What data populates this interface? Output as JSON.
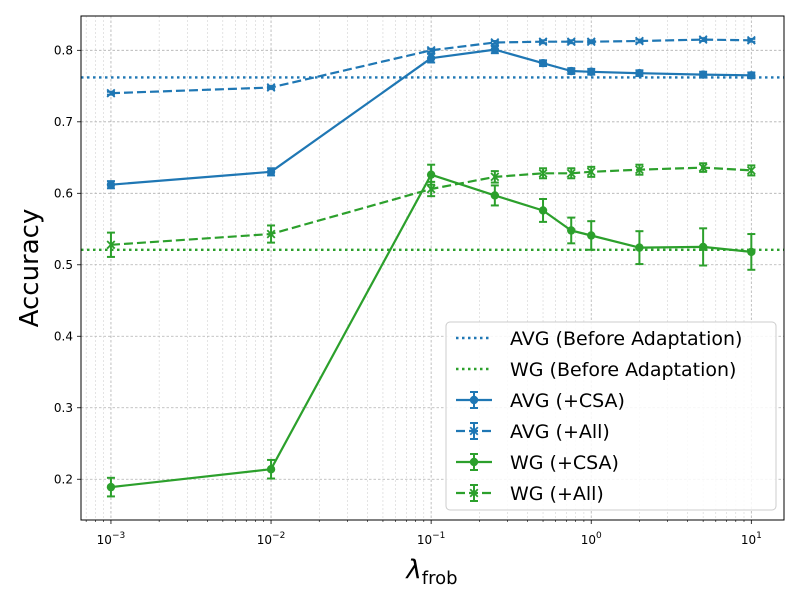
{
  "chart_data": {
    "type": "line",
    "xscale": "log",
    "xlim": [
      0.00065,
      16
    ],
    "ylim": [
      0.143,
      0.848
    ],
    "xlabel": "λ",
    "xlabel_subscript": "frob",
    "ylabel": "Accuracy",
    "grid": true,
    "legend_location": "lower-right",
    "x_ticks": [
      {
        "value": 0.001,
        "base": "10",
        "exp": "−3"
      },
      {
        "value": 0.01,
        "base": "10",
        "exp": "−2"
      },
      {
        "value": 0.1,
        "base": "10",
        "exp": "−1"
      },
      {
        "value": 1,
        "base": "10",
        "exp": "0"
      },
      {
        "value": 10,
        "base": "10",
        "exp": "1"
      }
    ],
    "y_ticks": [
      {
        "value": 0.2,
        "label": "0.2"
      },
      {
        "value": 0.3,
        "label": "0.3"
      },
      {
        "value": 0.4,
        "label": "0.4"
      },
      {
        "value": 0.5,
        "label": "0.5"
      },
      {
        "value": 0.6,
        "label": "0.6"
      },
      {
        "value": 0.7,
        "label": "0.7"
      },
      {
        "value": 0.8,
        "label": "0.8"
      }
    ],
    "reference_lines": [
      {
        "name": "AVG (Before Adaptation)",
        "y": 0.762,
        "color": "#1f77b4",
        "style": "dotted"
      },
      {
        "name": "WG (Before Adaptation)",
        "y": 0.521,
        "color": "#2ca02c",
        "style": "dotted"
      }
    ],
    "series": [
      {
        "name": "AVG (+CSA)",
        "color": "#1f77b4",
        "linestyle": "solid",
        "marker": "circle",
        "x": [
          0.001,
          0.01,
          0.1,
          0.25,
          0.5,
          0.75,
          1,
          2,
          5,
          10
        ],
        "y": [
          0.612,
          0.63,
          0.789,
          0.801,
          0.782,
          0.771,
          0.77,
          0.768,
          0.766,
          0.765
        ],
        "err": [
          0.005,
          0.005,
          0.006,
          0.005,
          0.004,
          0.004,
          0.004,
          0.004,
          0.004,
          0.004
        ]
      },
      {
        "name": "AVG (+All)",
        "color": "#1f77b4",
        "linestyle": "dashed",
        "marker": "x",
        "x": [
          0.001,
          0.01,
          0.1,
          0.25,
          0.5,
          0.75,
          1,
          2,
          5,
          10
        ],
        "y": [
          0.74,
          0.748,
          0.8,
          0.811,
          0.812,
          0.812,
          0.812,
          0.813,
          0.815,
          0.814
        ],
        "err": [
          0.002,
          0.002,
          0.002,
          0.002,
          0.002,
          0.002,
          0.002,
          0.002,
          0.002,
          0.002
        ]
      },
      {
        "name": "WG (+CSA)",
        "color": "#2ca02c",
        "linestyle": "solid",
        "marker": "circle",
        "x": [
          0.001,
          0.01,
          0.1,
          0.25,
          0.5,
          0.75,
          1,
          2,
          5,
          10
        ],
        "y": [
          0.189,
          0.214,
          0.626,
          0.597,
          0.576,
          0.548,
          0.541,
          0.524,
          0.525,
          0.518
        ],
        "err": [
          0.013,
          0.013,
          0.014,
          0.014,
          0.016,
          0.018,
          0.02,
          0.023,
          0.026,
          0.025
        ]
      },
      {
        "name": "WG (+All)",
        "color": "#2ca02c",
        "linestyle": "dashed",
        "marker": "x",
        "x": [
          0.001,
          0.01,
          0.1,
          0.25,
          0.5,
          0.75,
          1,
          2,
          5,
          10
        ],
        "y": [
          0.528,
          0.543,
          0.606,
          0.623,
          0.628,
          0.628,
          0.63,
          0.633,
          0.636,
          0.632
        ],
        "err": [
          0.017,
          0.012,
          0.01,
          0.008,
          0.007,
          0.007,
          0.007,
          0.007,
          0.006,
          0.007
        ]
      }
    ]
  }
}
